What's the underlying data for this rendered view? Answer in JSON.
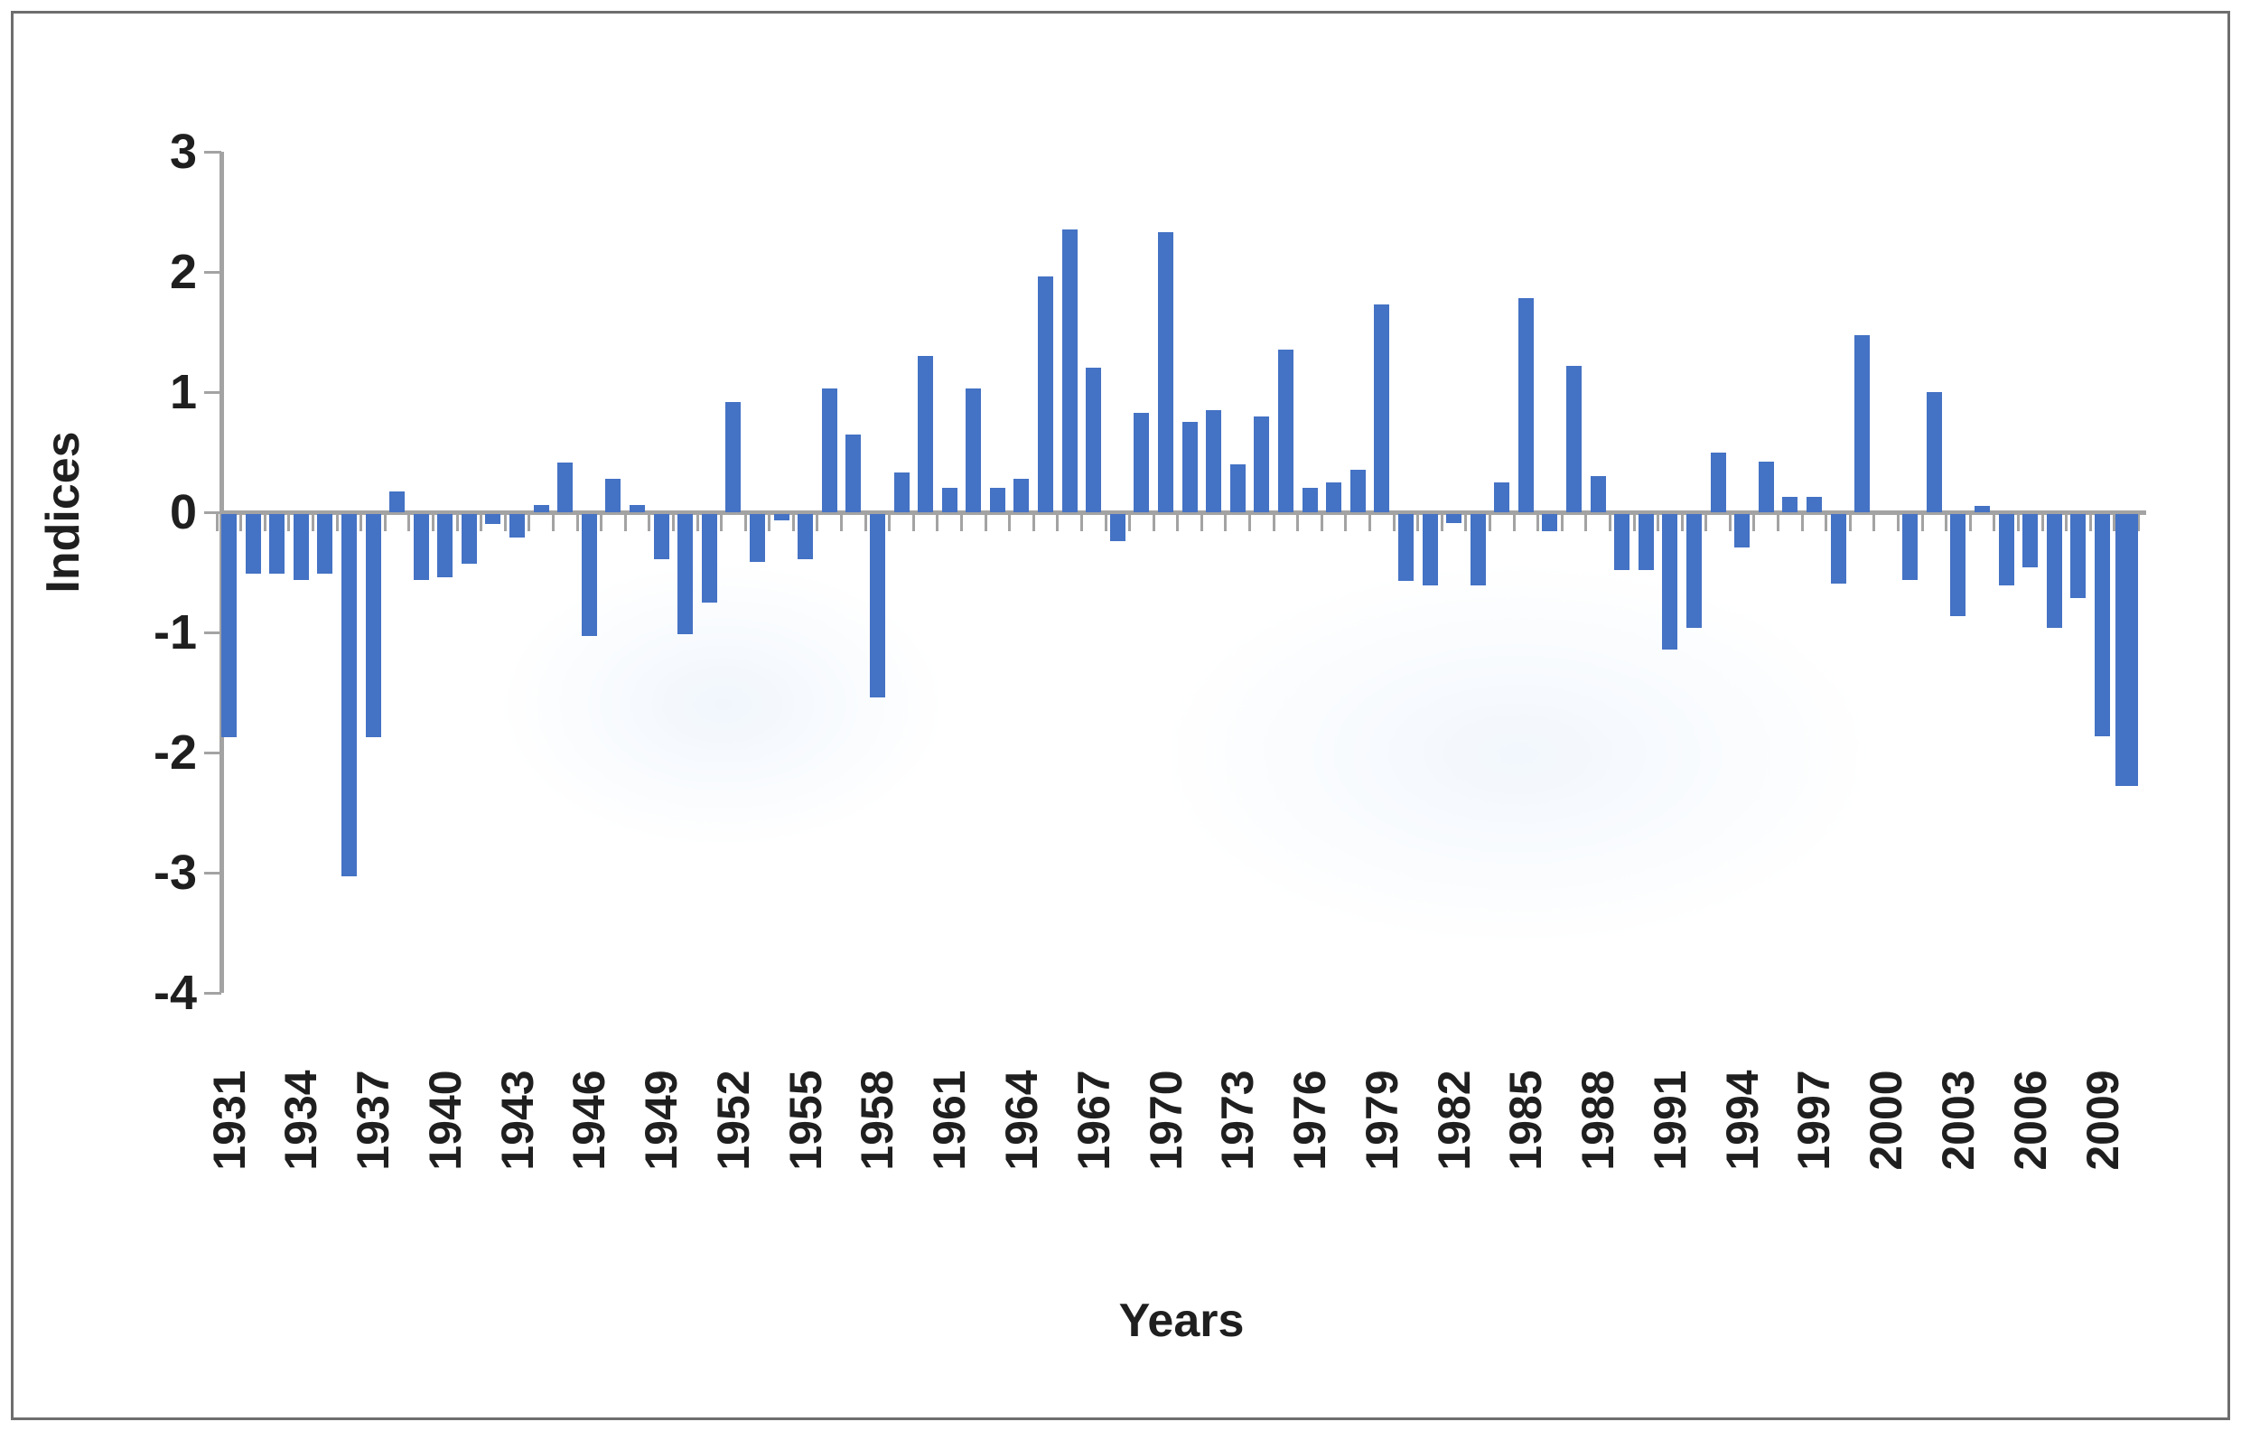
{
  "chart_data": {
    "type": "bar",
    "title": "",
    "xlabel": "Years",
    "ylabel": "Indices",
    "ylim": [
      -4,
      3
    ],
    "yticks": [
      3,
      2,
      1,
      0,
      -1,
      -2,
      -3,
      -4
    ],
    "xtick_label_interval": 3,
    "grid": false,
    "legend": "none",
    "bar_color": "#4472C4",
    "axis_color": "#A3A3A3",
    "text_color": "#1F1F1F",
    "last_bar_wide": true,
    "categories": [
      1931,
      1932,
      1933,
      1934,
      1935,
      1936,
      1937,
      1938,
      1939,
      1940,
      1941,
      1942,
      1943,
      1944,
      1945,
      1946,
      1947,
      1948,
      1949,
      1950,
      1951,
      1952,
      1953,
      1954,
      1955,
      1956,
      1957,
      1958,
      1959,
      1960,
      1961,
      1962,
      1963,
      1964,
      1965,
      1966,
      1967,
      1968,
      1969,
      1970,
      1971,
      1972,
      1973,
      1974,
      1975,
      1976,
      1977,
      1978,
      1979,
      1980,
      1981,
      1982,
      1983,
      1984,
      1985,
      1986,
      1987,
      1988,
      1989,
      1990,
      1991,
      1992,
      1993,
      1994,
      1995,
      1996,
      1997,
      1998,
      1999,
      2000,
      2001,
      2002,
      2003,
      2004,
      2005,
      2006,
      2007,
      2008,
      2009,
      2010
    ],
    "values": [
      -1.86,
      -0.5,
      -0.5,
      -0.55,
      -0.5,
      -3.02,
      -1.86,
      0.17,
      -0.55,
      -0.53,
      -0.42,
      -0.09,
      -0.2,
      0.06,
      0.41,
      -1.02,
      0.28,
      0.06,
      -0.38,
      -1.0,
      -0.74,
      0.92,
      -0.4,
      -0.06,
      -0.38,
      1.03,
      0.65,
      -1.53,
      0.33,
      1.3,
      0.2,
      1.03,
      0.2,
      0.28,
      1.96,
      2.35,
      1.2,
      -0.23,
      0.83,
      2.33,
      0.75,
      0.85,
      0.4,
      0.8,
      1.35,
      0.2,
      0.25,
      0.35,
      1.73,
      -0.56,
      -0.6,
      -0.08,
      -0.6,
      0.25,
      1.78,
      -0.15,
      1.22,
      0.3,
      -0.47,
      -0.47,
      -1.13,
      -0.95,
      0.5,
      -0.28,
      0.42,
      0.13,
      0.13,
      -0.58,
      1.47,
      0.0,
      -0.55,
      1.0,
      -0.85,
      0.05,
      -0.6,
      -0.45,
      -0.95,
      -0.7,
      -1.85,
      -2.27
    ]
  }
}
